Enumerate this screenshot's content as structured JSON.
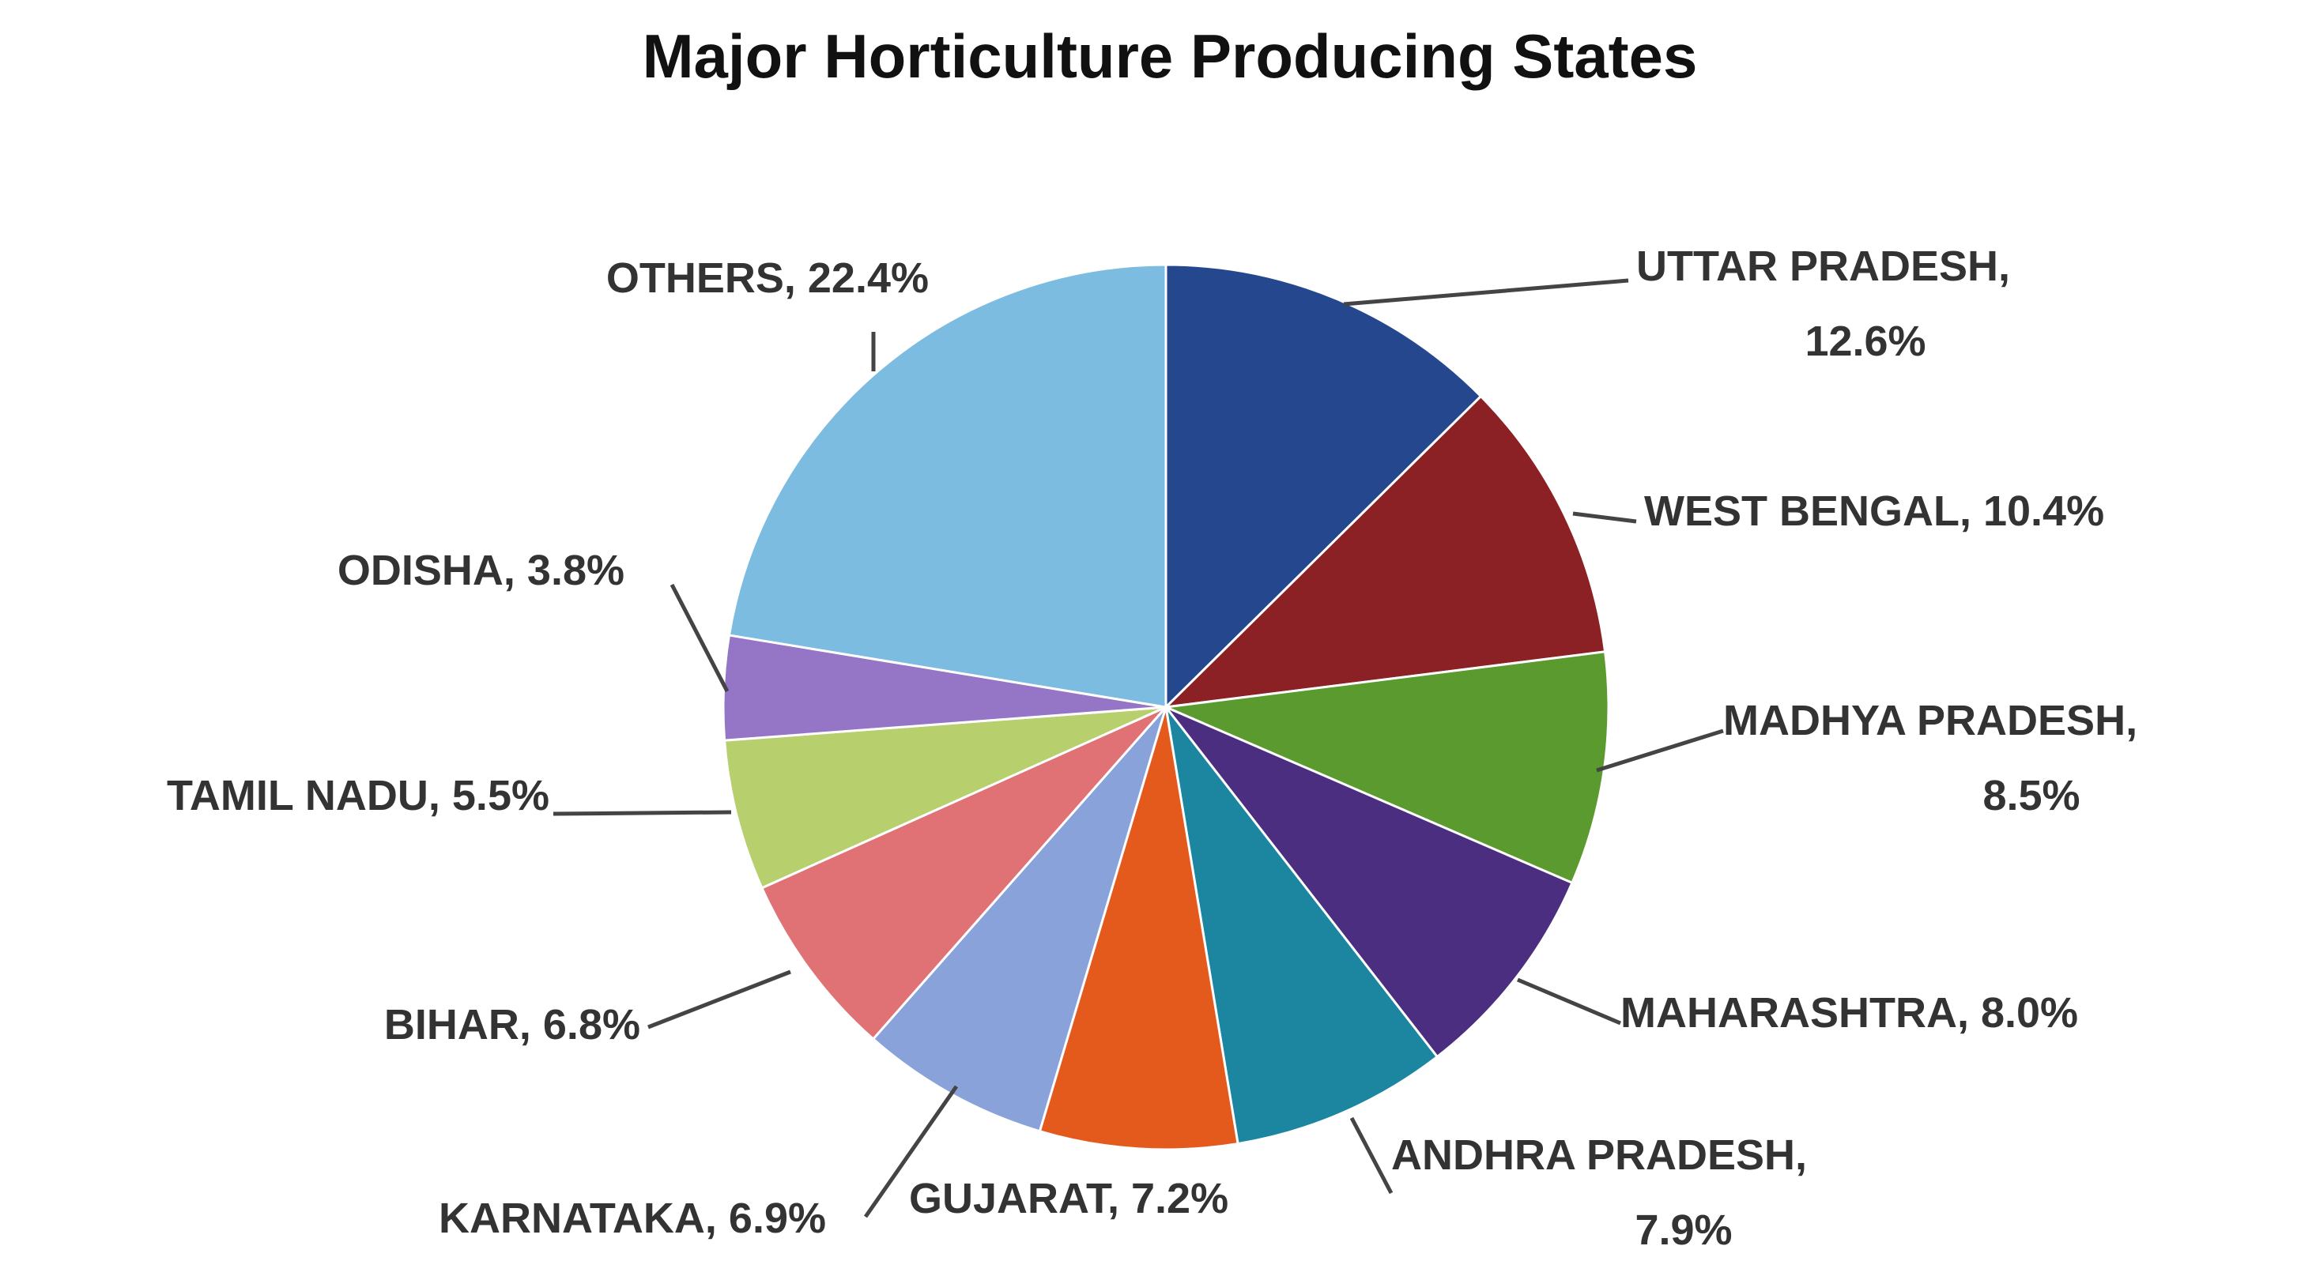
{
  "chart_data": {
    "type": "pie",
    "title": "Major Horticulture Producing States",
    "slices": [
      {
        "name": "UTTAR PRADESH",
        "value": 12.6,
        "label_lines": [
          "UTTAR PRADESH,",
          "12.6%"
        ],
        "color": "#24478E"
      },
      {
        "name": "WEST BENGAL",
        "value": 10.4,
        "label_lines": [
          "WEST BENGAL, 10.4%"
        ],
        "color": "#8B2124"
      },
      {
        "name": "MADHYA PRADESH",
        "value": 8.5,
        "label_lines": [
          "MADHYA PRADESH,",
          "8.5%"
        ],
        "color": "#5A9A2E"
      },
      {
        "name": "MAHARASHTRA",
        "value": 8.0,
        "label_lines": [
          "MAHARASHTRA, 8.0%"
        ],
        "color": "#4B2E80"
      },
      {
        "name": "ANDHRA PRADESH",
        "value": 7.9,
        "label_lines": [
          "ANDHRA PRADESH,",
          "7.9%"
        ],
        "color": "#1C86A0"
      },
      {
        "name": "GUJARAT",
        "value": 7.2,
        "label_lines": [
          "GUJARAT, 7.2%"
        ],
        "color": "#E35A1C"
      },
      {
        "name": "KARNATAKA",
        "value": 6.9,
        "label_lines": [
          "KARNATAKA, 6.9%"
        ],
        "color": "#8AA2DA"
      },
      {
        "name": "BIHAR",
        "value": 6.8,
        "label_lines": [
          "BIHAR, 6.8%"
        ],
        "color": "#E07276"
      },
      {
        "name": "TAMIL NADU",
        "value": 5.5,
        "label_lines": [
          "TAMIL NADU, 5.5%"
        ],
        "color": "#B7CF6D"
      },
      {
        "name": "ODISHA",
        "value": 3.8,
        "label_lines": [
          "ODISHA, 3.8%"
        ],
        "color": "#9575C6"
      },
      {
        "name": "OTHERS",
        "value": 22.4,
        "label_lines": [
          "OTHERS, 22.4%"
        ],
        "color": "#7BBCE0"
      }
    ],
    "start_angle_deg": 0,
    "direction": "clockwise"
  }
}
